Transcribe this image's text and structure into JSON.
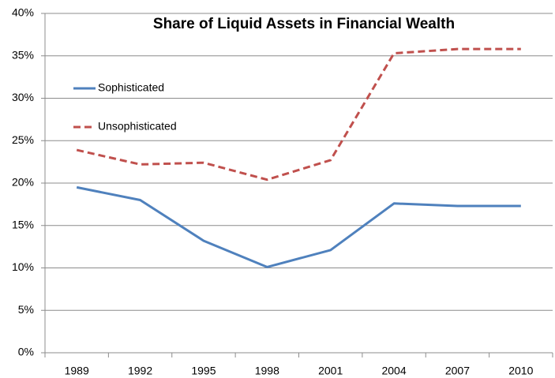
{
  "chart_data": {
    "type": "line",
    "title": "Share of Liquid Assets in Financial Wealth",
    "categories": [
      "1989",
      "1992",
      "1995",
      "1998",
      "2001",
      "2004",
      "2007",
      "2010"
    ],
    "series": [
      {
        "name": "Sophisticated",
        "color": "#4f81bd",
        "dash": "solid",
        "values": [
          19.5,
          18.0,
          13.2,
          10.1,
          12.1,
          17.6,
          17.3,
          17.3
        ]
      },
      {
        "name": "Unsophisticated",
        "color": "#c0504d",
        "dash": "dashed",
        "values": [
          23.9,
          22.2,
          22.4,
          20.4,
          22.7,
          35.3,
          35.8,
          35.8
        ]
      }
    ],
    "ylim": [
      0,
      40
    ],
    "yticks": [
      {
        "value": 0,
        "label": "0%"
      },
      {
        "value": 5,
        "label": "5%"
      },
      {
        "value": 10,
        "label": "10%"
      },
      {
        "value": 15,
        "label": "15%"
      },
      {
        "value": 20,
        "label": "20%"
      },
      {
        "value": 25,
        "label": "25%"
      },
      {
        "value": 30,
        "label": "30%"
      },
      {
        "value": 35,
        "label": "35%"
      },
      {
        "value": 40,
        "label": "40%"
      }
    ],
    "grid": true,
    "legend": "upper left"
  }
}
